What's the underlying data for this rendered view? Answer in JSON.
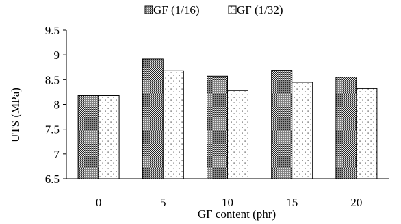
{
  "chart_data": {
    "type": "bar",
    "categories": [
      "0",
      "5",
      "10",
      "15",
      "20"
    ],
    "series": [
      {
        "name": "GF (1/16)",
        "values": [
          8.18,
          8.92,
          8.57,
          8.69,
          8.55
        ]
      },
      {
        "name": "GF (1/32)",
        "values": [
          8.18,
          8.68,
          8.28,
          8.45,
          8.32
        ]
      }
    ],
    "xlabel": "GF content (phr)",
    "ylabel": "UTS (MPa)",
    "ylim": [
      6.5,
      9.5
    ],
    "yticks": [
      "6.5",
      "7",
      "7.5",
      "8",
      "8.5",
      "9",
      "9.5"
    ],
    "grid": false,
    "legend_position": "top-center"
  }
}
